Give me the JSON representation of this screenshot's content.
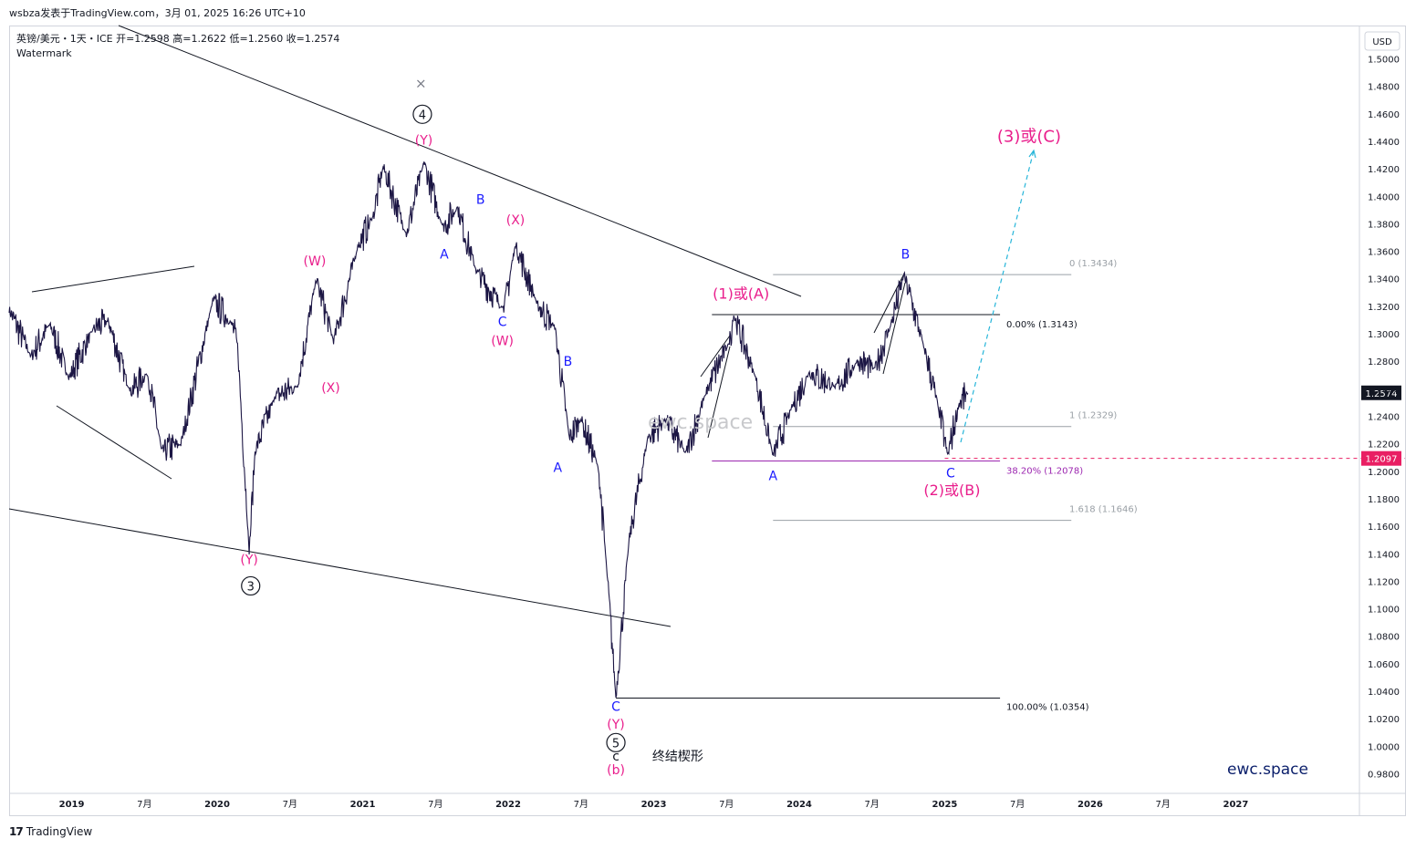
{
  "header": {
    "attribution": "wsbza发表于TradingView.com，3月 01, 2025 16:26 UTC+10"
  },
  "legend": {
    "symbol_line": "英镑/美元・1天・ICE  开=1.2598  高=1.2622  低=1.2560  收=1.2574",
    "watermark_label": "Watermark"
  },
  "footer": {
    "brand": "TradingView"
  },
  "watermark_text": "ewc.space",
  "brand_text": "ewc.space",
  "chart_data": {
    "type": "line",
    "title": "英镑/美元・1天・ICE",
    "currency": "USD",
    "ylim": [
      0.97,
      1.515
    ],
    "y_ticks": [
      0.98,
      1.0,
      1.02,
      1.04,
      1.06,
      1.08,
      1.1,
      1.12,
      1.14,
      1.16,
      1.18,
      1.2,
      1.22,
      1.24,
      1.26,
      1.28,
      1.3,
      1.32,
      1.34,
      1.36,
      1.38,
      1.4,
      1.42,
      1.44,
      1.46,
      1.48,
      1.5
    ],
    "y_tick_labels": [
      "0.9800",
      "1.0000",
      "1.0200",
      "1.0400",
      "1.0600",
      "1.0800",
      "1.1000",
      "1.1200",
      "1.1400",
      "1.1600",
      "1.1800",
      "1.2000",
      "1.2200",
      "1.2400",
      "1.2600",
      "1.2800",
      "1.3000",
      "1.3200",
      "1.3400",
      "1.3600",
      "1.3800",
      "1.4000",
      "1.4200",
      "1.4400",
      "1.4600",
      "1.4800",
      "1.5000"
    ],
    "x_range": [
      2018.57,
      2027.85
    ],
    "x_ticks": [
      {
        "t": 2019.0,
        "label": "2019",
        "bold": true
      },
      {
        "t": 2019.5,
        "label": "7月",
        "bold": false
      },
      {
        "t": 2020.0,
        "label": "2020",
        "bold": true
      },
      {
        "t": 2020.5,
        "label": "7月",
        "bold": false
      },
      {
        "t": 2021.0,
        "label": "2021",
        "bold": true
      },
      {
        "t": 2021.5,
        "label": "7月",
        "bold": false
      },
      {
        "t": 2022.0,
        "label": "2022",
        "bold": true
      },
      {
        "t": 2022.5,
        "label": "7月",
        "bold": false
      },
      {
        "t": 2023.0,
        "label": "2023",
        "bold": true
      },
      {
        "t": 2023.5,
        "label": "7月",
        "bold": false
      },
      {
        "t": 2024.0,
        "label": "2024",
        "bold": true
      },
      {
        "t": 2024.5,
        "label": "7月",
        "bold": false
      },
      {
        "t": 2025.0,
        "label": "2025",
        "bold": true
      },
      {
        "t": 2025.5,
        "label": "7月",
        "bold": false
      },
      {
        "t": 2026.0,
        "label": "2026",
        "bold": true
      },
      {
        "t": 2026.5,
        "label": "7月",
        "bold": false
      },
      {
        "t": 2027.0,
        "label": "2027",
        "bold": true
      }
    ],
    "price_anchors": [
      [
        2018.57,
        1.318
      ],
      [
        2018.72,
        1.284
      ],
      [
        2018.85,
        1.308
      ],
      [
        2018.98,
        1.268
      ],
      [
        2019.15,
        1.304
      ],
      [
        2019.25,
        1.31
      ],
      [
        2019.4,
        1.258
      ],
      [
        2019.52,
        1.272
      ],
      [
        2019.62,
        1.215
      ],
      [
        2019.75,
        1.22
      ],
      [
        2019.97,
        1.325
      ],
      [
        2020.1,
        1.308
      ],
      [
        2020.14,
        1.292
      ],
      [
        2020.22,
        1.142
      ],
      [
        2020.26,
        1.215
      ],
      [
        2020.4,
        1.255
      ],
      [
        2020.55,
        1.262
      ],
      [
        2020.68,
        1.34
      ],
      [
        2020.8,
        1.295
      ],
      [
        2020.97,
        1.365
      ],
      [
        2021.07,
        1.385
      ],
      [
        2021.14,
        1.422
      ],
      [
        2021.3,
        1.372
      ],
      [
        2021.42,
        1.425
      ],
      [
        2021.55,
        1.378
      ],
      [
        2021.65,
        1.392
      ],
      [
        2021.78,
        1.346
      ],
      [
        2021.97,
        1.318
      ],
      [
        2022.05,
        1.365
      ],
      [
        2022.2,
        1.322
      ],
      [
        2022.32,
        1.305
      ],
      [
        2022.42,
        1.225
      ],
      [
        2022.5,
        1.238
      ],
      [
        2022.62,
        1.203
      ],
      [
        2022.68,
        1.125
      ],
      [
        2022.74,
        1.036
      ],
      [
        2022.83,
        1.15
      ],
      [
        2022.96,
        1.225
      ],
      [
        2023.08,
        1.238
      ],
      [
        2023.22,
        1.213
      ],
      [
        2023.36,
        1.258
      ],
      [
        2023.52,
        1.295
      ],
      [
        2023.55,
        1.314
      ],
      [
        2023.7,
        1.268
      ],
      [
        2023.82,
        1.212
      ],
      [
        2023.95,
        1.247
      ],
      [
        2024.07,
        1.272
      ],
      [
        2024.25,
        1.262
      ],
      [
        2024.4,
        1.28
      ],
      [
        2024.52,
        1.275
      ],
      [
        2024.63,
        1.307
      ],
      [
        2024.72,
        1.343
      ],
      [
        2024.86,
        1.29
      ],
      [
        2024.96,
        1.245
      ],
      [
        2025.02,
        1.212
      ],
      [
        2025.1,
        1.25
      ],
      [
        2025.16,
        1.257
      ]
    ],
    "last_price": {
      "value": 1.2574,
      "label": "1.2574"
    },
    "dashed_level": {
      "value": 1.2097,
      "label": "1.2097",
      "color": "#e91e63"
    },
    "fibonacci_levels": [
      {
        "value": 1.3434,
        "label": "0 (1.3434)",
        "color": "#9aa0a6"
      },
      {
        "value": 1.3143,
        "label": "0.00% (1.3143)",
        "color": "#131722"
      },
      {
        "value": 1.2329,
        "label": "1 (1.2329)",
        "color": "#9aa0a6"
      },
      {
        "value": 1.2078,
        "label": "38.20% (1.2078)",
        "color": "#9c27b0"
      },
      {
        "value": 1.1646,
        "label": "1.618 (1.1646)",
        "color": "#9aa0a6"
      },
      {
        "value": 1.0354,
        "label": "100.00% (1.0354)",
        "color": "#131722"
      }
    ],
    "wave_labels": [
      {
        "text": "(W)",
        "t": 2020.67,
        "v": 1.35,
        "color": "#e91e8c"
      },
      {
        "text": "(X)",
        "t": 2020.78,
        "v": 1.258,
        "color": "#e91e8c"
      },
      {
        "text": "(Y)",
        "t": 2020.22,
        "v": 1.133,
        "color": "#e91e8c"
      },
      {
        "text": "(Y)",
        "t": 2021.42,
        "v": 1.438,
        "color": "#e91e8c"
      },
      {
        "text": "A",
        "t": 2021.56,
        "v": 1.355,
        "color": "#1a1aff"
      },
      {
        "text": "B",
        "t": 2021.81,
        "v": 1.395,
        "color": "#1a1aff"
      },
      {
        "text": "(X)",
        "t": 2022.05,
        "v": 1.38,
        "color": "#e91e8c"
      },
      {
        "text": "C",
        "t": 2021.96,
        "v": 1.306,
        "color": "#1a1aff"
      },
      {
        "text": "(W)",
        "t": 2021.96,
        "v": 1.292,
        "color": "#e91e8c"
      },
      {
        "text": "B",
        "t": 2022.41,
        "v": 1.277,
        "color": "#1a1aff"
      },
      {
        "text": "A",
        "t": 2022.34,
        "v": 1.2,
        "color": "#1a1aff"
      },
      {
        "text": "(1)或(A)",
        "t": 2023.6,
        "v": 1.326,
        "color": "#e91e8c"
      },
      {
        "text": "A",
        "t": 2023.82,
        "v": 1.194,
        "color": "#1a1aff"
      },
      {
        "text": "B",
        "t": 2024.73,
        "v": 1.355,
        "color": "#1a1aff"
      },
      {
        "text": "C",
        "t": 2025.04,
        "v": 1.196,
        "color": "#1a1aff"
      },
      {
        "text": "(2)或(B)",
        "t": 2025.05,
        "v": 1.183,
        "color": "#e91e8c"
      },
      {
        "text": "(3)或(C)",
        "t": 2025.58,
        "v": 1.44,
        "color": "#e91e8c"
      },
      {
        "text": "C",
        "t": 2022.74,
        "v": 1.026,
        "color": "#1a1aff"
      },
      {
        "text": "(Y)",
        "t": 2022.74,
        "v": 1.013,
        "color": "#e91e8c"
      },
      {
        "text": "c",
        "t": 2022.74,
        "v": 0.99,
        "color": "#131722"
      },
      {
        "text": "终结楔形",
        "t": 2022.99,
        "v": 0.99,
        "color": "#131722"
      },
      {
        "text": "(b)",
        "t": 2022.74,
        "v": 0.98,
        "color": "#e91e8c"
      }
    ],
    "circle_labels": [
      {
        "text": "4",
        "t": 2021.41,
        "v": 1.46
      },
      {
        "text": "3",
        "t": 2020.23,
        "v": 1.117
      },
      {
        "text": "5",
        "t": 2022.74,
        "v": 1.003
      }
    ],
    "x_marker": {
      "text": "×",
      "t": 2021.4,
      "v": 1.479
    }
  }
}
